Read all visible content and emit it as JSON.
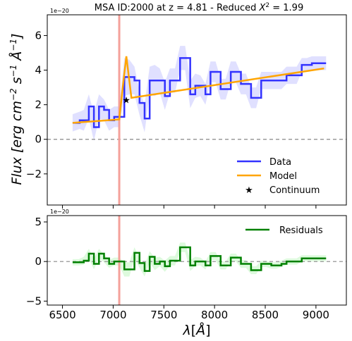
{
  "chart_data": [
    {
      "type": "line",
      "title": "MSA ID:2000 at z = 4.81 - Reduced X² = 1.99",
      "title_parts": {
        "main": "MSA ID:2000 at z = 4.81 - Reduced ",
        "chi_symbol": "X",
        "chi_power": "2",
        "chi_value": " = 1.99"
      },
      "ylabel": "Flux [erg cm⁻² s⁻¹ Å⁻¹]",
      "ylabel_parts": {
        "a": "Flux [erg cm",
        "e1": "−2",
        "b": " s",
        "e2": "−1",
        "c": " Å",
        "e3": "−1",
        "d": "]"
      },
      "scale_label": "1e−20",
      "xlim": [
        6350,
        9300
      ],
      "ylim": [
        -3.8,
        7.2
      ],
      "yticks": [
        -2,
        0,
        2,
        4,
        6
      ],
      "ytick_labels": [
        "−2",
        "0",
        "2",
        "4",
        "6"
      ],
      "zero_line": 0,
      "vline_x": 7060,
      "colors": {
        "data": "#3333ff",
        "model": "#ffa500",
        "vline": "#f4a09a",
        "band": "#9999ff",
        "zero": "#888888"
      },
      "legend": {
        "position": "lower-right",
        "entries": [
          "Data",
          "Model",
          "Continuum"
        ]
      },
      "series": [
        {
          "name": "Data",
          "style": "step",
          "x": [
            6600,
            6670,
            6710,
            6760,
            6810,
            6860,
            6910,
            6960,
            7010,
            7060,
            7110,
            7160,
            7210,
            7260,
            7310,
            7360,
            7410,
            7460,
            7510,
            7560,
            7610,
            7660,
            7710,
            7760,
            7810,
            7860,
            7910,
            7960,
            8010,
            8060,
            8110,
            8160,
            8210,
            8260,
            8310,
            8360,
            8410,
            8460,
            8510,
            8560,
            8610,
            8660,
            8710,
            8760,
            8810,
            8860,
            8910,
            8960,
            9010,
            9060,
            9100
          ],
          "y": [
            0.95,
            1.1,
            1.1,
            1.9,
            0.7,
            1.9,
            1.7,
            1.1,
            1.3,
            1.3,
            3.6,
            3.6,
            3.4,
            2.1,
            1.2,
            3.4,
            3.4,
            3.4,
            2.5,
            3.4,
            3.4,
            4.7,
            4.7,
            2.6,
            3.1,
            3.1,
            2.6,
            3.9,
            3.9,
            2.9,
            2.9,
            3.9,
            3.9,
            3.2,
            3.2,
            2.4,
            2.4,
            3.4,
            3.4,
            3.4,
            3.4,
            3.4,
            3.7,
            3.7,
            3.7,
            4.3,
            4.3,
            4.4,
            4.4,
            4.4,
            4.4
          ],
          "error": [
            0.5,
            0.5,
            0.6,
            0.7,
            0.8,
            0.7,
            0.6,
            0.6,
            0.6,
            0.6,
            1.1,
            1.0,
            0.8,
            0.7,
            0.8,
            0.8,
            0.9,
            0.7,
            0.8,
            0.7,
            0.7,
            0.7,
            0.7,
            0.8,
            0.7,
            0.6,
            0.6,
            0.6,
            0.6,
            0.6,
            0.6,
            0.6,
            0.6,
            0.6,
            0.6,
            0.6,
            0.6,
            0.5,
            0.5,
            0.5,
            0.5,
            0.5,
            0.5,
            0.5,
            0.5,
            0.4,
            0.4,
            0.4,
            0.4,
            0.4,
            0.4
          ]
        },
        {
          "name": "Model",
          "style": "line",
          "x": [
            6600,
            7060,
            7100,
            7130,
            7180,
            9080
          ],
          "y": [
            0.95,
            1.15,
            3.3,
            4.8,
            2.4,
            4.1
          ]
        }
      ],
      "continuum_point": {
        "label": "Continuum",
        "x": 7130,
        "y": 2.3
      }
    },
    {
      "type": "line",
      "xlabel": "λ[Å]",
      "xlabel_parts": {
        "lam": "λ",
        "a": "[",
        "ang": "Å",
        "b": "]"
      },
      "scale_label": "1e−20",
      "xlim": [
        6350,
        9300
      ],
      "ylim": [
        -5.5,
        5.8
      ],
      "yticks": [
        -5,
        0,
        5
      ],
      "ytick_labels": [
        "−5",
        "0",
        "5"
      ],
      "xticks": [
        6500,
        7000,
        7500,
        8000,
        8500,
        9000
      ],
      "xtick_labels": [
        "6500",
        "7000",
        "7500",
        "8000",
        "8500",
        "9000"
      ],
      "zero_line": 0,
      "vline_x": 7060,
      "colors": {
        "resid": "#008000",
        "band": "#90ee90",
        "vline": "#f4a09a",
        "zero": "#888888"
      },
      "legend": {
        "position": "upper-right",
        "entries": [
          "Residuals"
        ]
      },
      "series": [
        {
          "name": "Residuals",
          "style": "step",
          "x": [
            6600,
            6660,
            6710,
            6760,
            6810,
            6860,
            6910,
            6960,
            7010,
            7060,
            7110,
            7160,
            7210,
            7260,
            7310,
            7360,
            7410,
            7460,
            7510,
            7560,
            7610,
            7660,
            7710,
            7760,
            7810,
            7860,
            7910,
            7960,
            8010,
            8060,
            8110,
            8160,
            8210,
            8260,
            8310,
            8360,
            8410,
            8460,
            8510,
            8560,
            8610,
            8660,
            8710,
            8760,
            8810,
            8860,
            8910,
            8960,
            9010,
            9060,
            9100
          ],
          "y": [
            -0.1,
            -0.1,
            0.1,
            1.0,
            -0.3,
            1.0,
            0.4,
            -0.3,
            0.0,
            0.0,
            -1.0,
            -1.0,
            1.1,
            -0.2,
            -1.2,
            0.6,
            -0.3,
            0.0,
            -0.6,
            0.1,
            0.1,
            1.8,
            1.8,
            -0.5,
            0.0,
            0.0,
            -0.5,
            0.7,
            0.7,
            -0.5,
            -0.5,
            0.5,
            0.5,
            -0.3,
            -0.3,
            -1.1,
            -1.1,
            -0.3,
            -0.3,
            -0.5,
            -0.5,
            -0.3,
            0.0,
            0.0,
            0.0,
            0.4,
            0.4,
            0.4,
            0.4,
            0.4,
            0.4
          ],
          "error": [
            0.4,
            0.4,
            0.5,
            0.6,
            0.7,
            0.6,
            0.5,
            0.5,
            0.5,
            0.5,
            0.9,
            0.9,
            0.7,
            0.6,
            0.7,
            0.7,
            0.8,
            0.6,
            0.7,
            0.6,
            0.6,
            0.6,
            0.6,
            0.7,
            0.6,
            0.5,
            0.5,
            0.5,
            0.5,
            0.5,
            0.5,
            0.5,
            0.5,
            0.5,
            0.5,
            0.5,
            0.5,
            0.4,
            0.4,
            0.4,
            0.4,
            0.4,
            0.4,
            0.4,
            0.4,
            0.4,
            0.4,
            0.4,
            0.4,
            0.4,
            0.4
          ]
        }
      ]
    }
  ]
}
